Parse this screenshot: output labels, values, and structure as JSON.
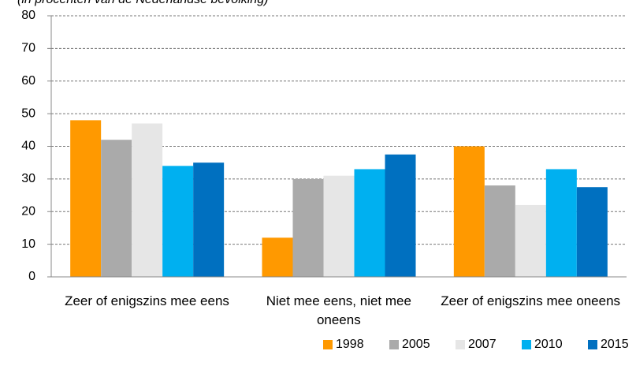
{
  "chart_data": {
    "type": "bar",
    "subtitle": "(in procenten van de Nederlandse bevolking)",
    "categories": [
      "Zeer of enigszins mee eens",
      "Niet mee eens, niet mee oneens",
      "Zeer of enigszins mee oneens"
    ],
    "series": [
      {
        "name": "1998",
        "color": "#ff9900",
        "values": [
          48,
          12,
          40
        ]
      },
      {
        "name": "2005",
        "color": "#aaaaaa",
        "values": [
          42,
          30,
          28
        ]
      },
      {
        "name": "2007",
        "color": "#e6e6e6",
        "values": [
          47,
          31,
          22
        ]
      },
      {
        "name": "2010",
        "color": "#00b0f0",
        "values": [
          34,
          33,
          33
        ]
      },
      {
        "name": "2015",
        "color": "#0070c0",
        "values": [
          35,
          37.5,
          27.5
        ]
      }
    ],
    "ylim": [
      0,
      80
    ],
    "yticks": [
      0,
      10,
      20,
      30,
      40,
      50,
      60,
      70,
      80
    ],
    "grid": true,
    "legend": "bottom"
  }
}
